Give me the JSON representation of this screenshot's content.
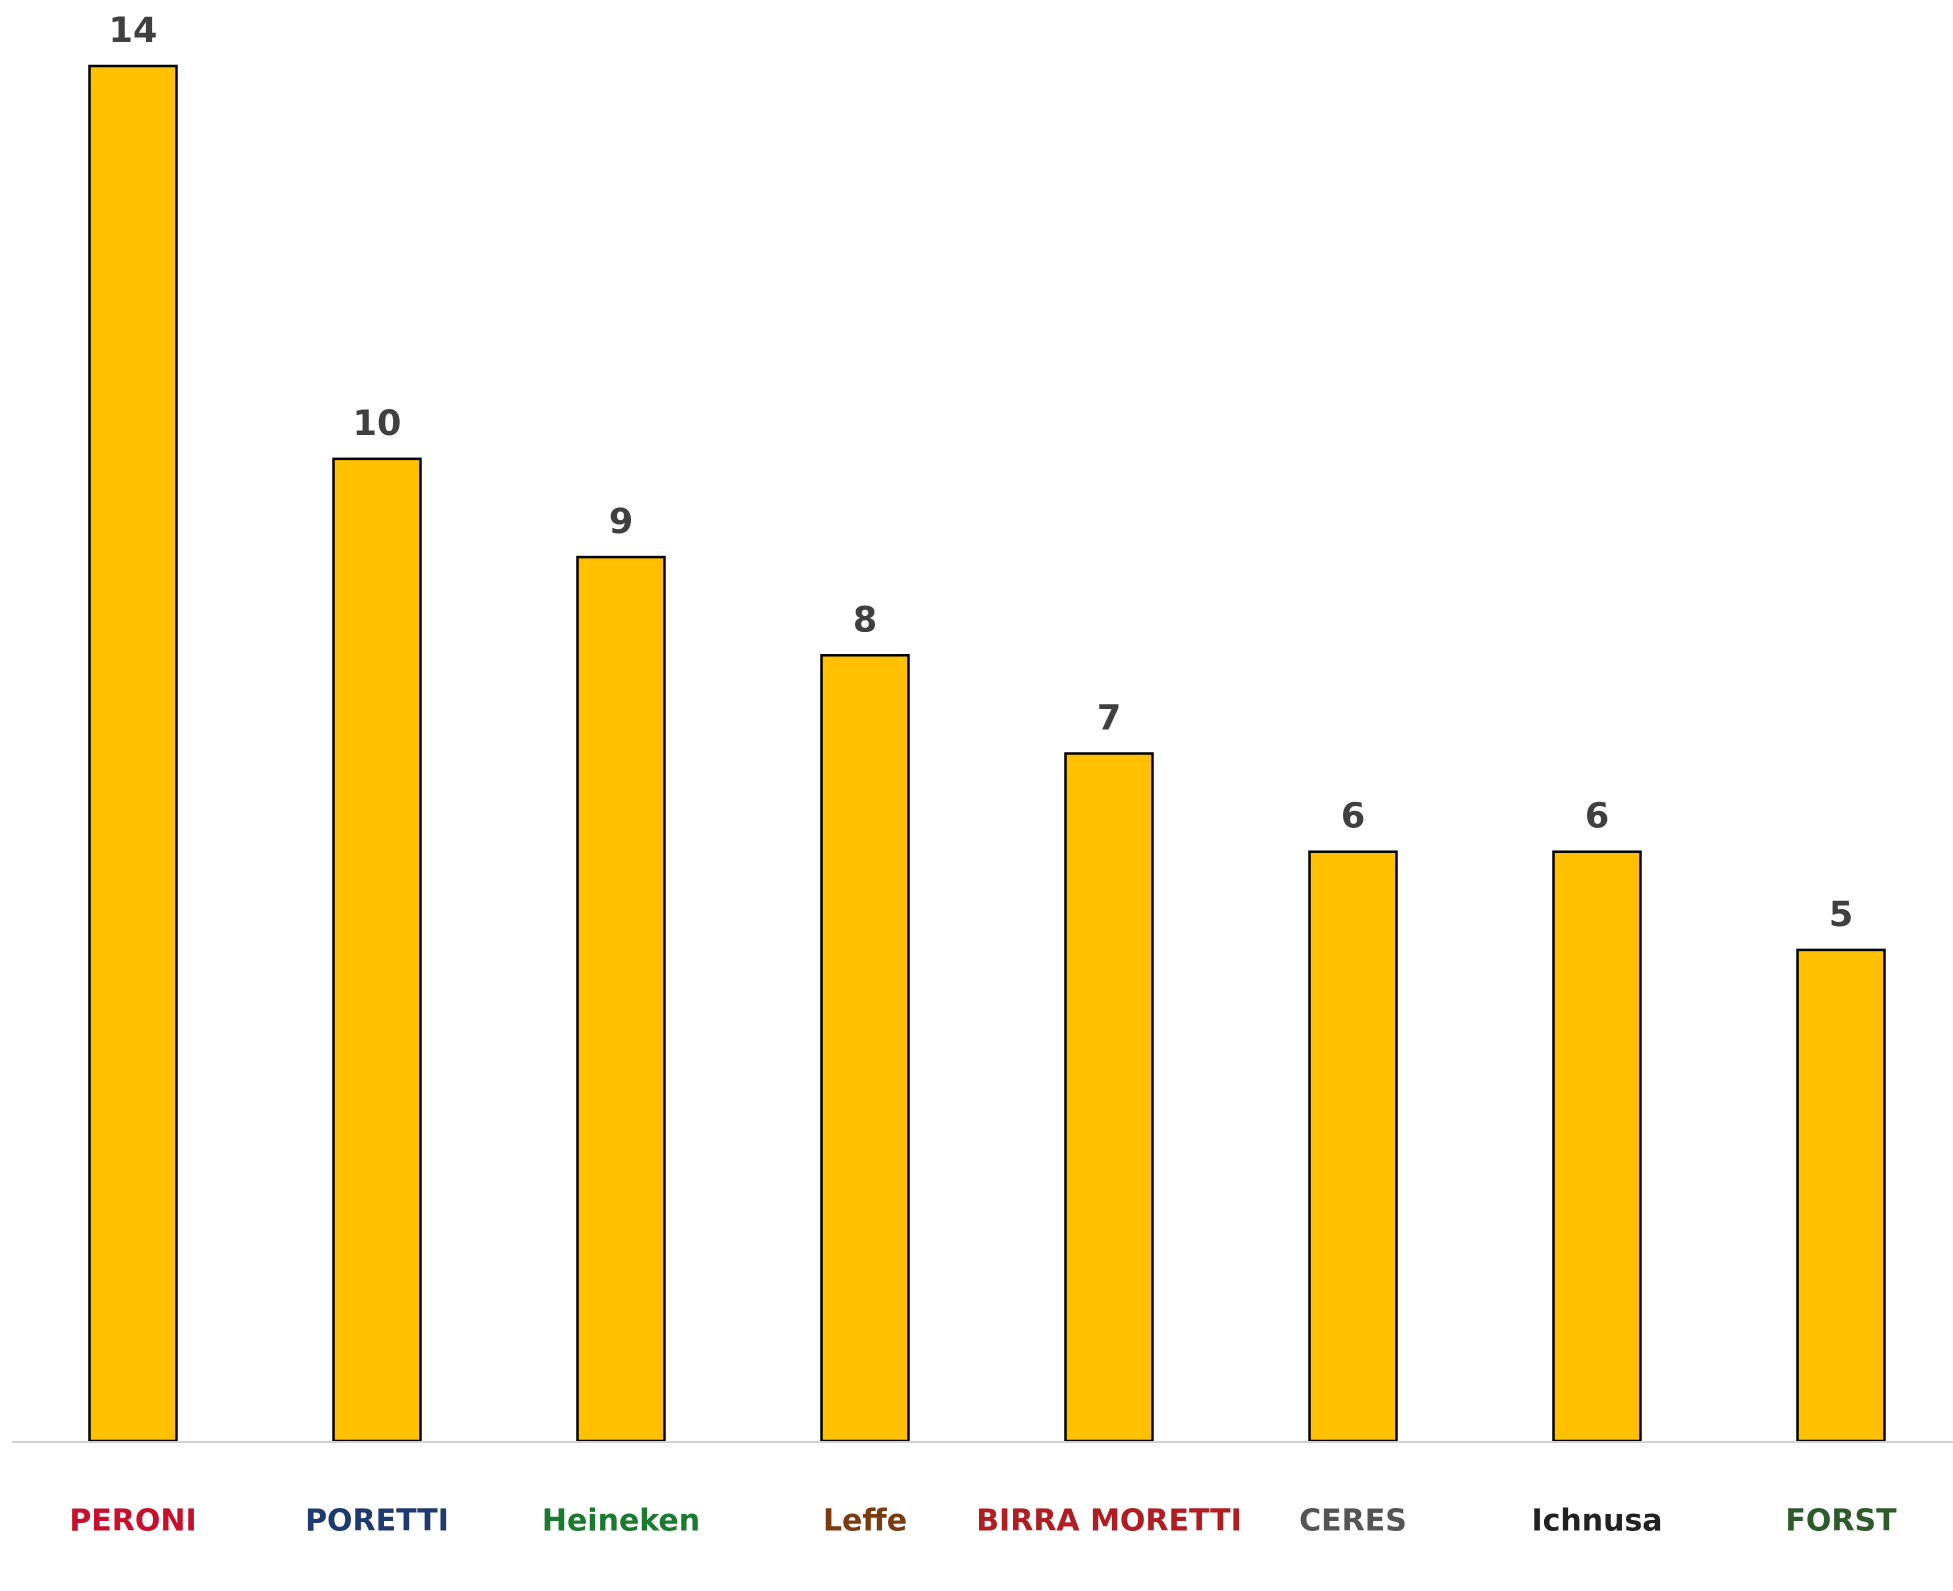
{
  "chart_data": {
    "type": "bar",
    "categories": [
      "PERONI",
      "PORETTI",
      "Heineken",
      "Leffe",
      "BIRRA MORETTI",
      "CERES",
      "Ichnusa",
      "FORST"
    ],
    "values": [
      14,
      10,
      9,
      8,
      7,
      6,
      6,
      5
    ],
    "color": "#ffc000",
    "ylim": [
      0,
      14
    ]
  }
}
